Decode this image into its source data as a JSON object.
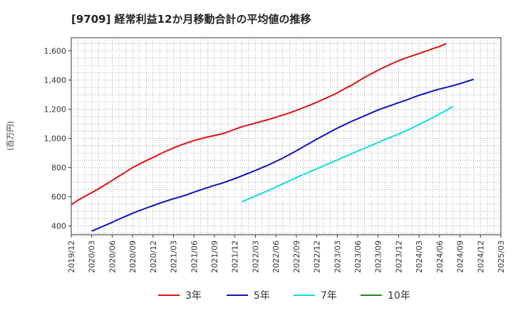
{
  "chart_data": {
    "type": "line",
    "title": "[9709]  経常利益12か月移動合計の平均値の推移",
    "ylabel": "(百万円)",
    "xlabel": "",
    "ylim": [
      340,
      1690
    ],
    "yticks": [
      400,
      600,
      800,
      1000,
      1200,
      1400,
      1600
    ],
    "ytick_labels": [
      "400",
      "600",
      "800",
      "1,000",
      "1,200",
      "1,400",
      "1,600"
    ],
    "xticks": [
      "2019/12",
      "2020/03",
      "2020/06",
      "2020/09",
      "2020/12",
      "2021/03",
      "2021/06",
      "2021/09",
      "2021/12",
      "2022/03",
      "2022/06",
      "2022/09",
      "2022/12",
      "2023/03",
      "2023/06",
      "2023/09",
      "2023/12",
      "2024/03",
      "2024/06",
      "2024/09",
      "2024/12",
      "2025/03"
    ],
    "grid": true,
    "legend_position": "bottom",
    "series": [
      {
        "name": "3年",
        "color": "#dd1111",
        "start": "2019/12",
        "values": [
          545,
          578,
          603,
          628,
          655,
          683,
          712,
          742,
          770,
          800,
          825,
          848,
          870,
          893,
          915,
          935,
          953,
          970,
          985,
          998,
          1010,
          1020,
          1030,
          1045,
          1063,
          1080,
          1092,
          1105,
          1118,
          1130,
          1145,
          1160,
          1175,
          1192,
          1210,
          1228,
          1248,
          1268,
          1290,
          1312,
          1338,
          1362,
          1390,
          1418,
          1443,
          1468,
          1490,
          1512,
          1532,
          1550,
          1565,
          1582,
          1598,
          1615,
          1630,
          1650
        ]
      },
      {
        "name": "5年",
        "color": "#1111bb",
        "start": "2020/03",
        "values": [
          365,
          385,
          405,
          425,
          447,
          467,
          487,
          505,
          523,
          540,
          557,
          572,
          587,
          600,
          615,
          632,
          648,
          663,
          678,
          692,
          708,
          725,
          743,
          762,
          780,
          800,
          820,
          842,
          865,
          890,
          915,
          942,
          968,
          995,
          1020,
          1045,
          1070,
          1092,
          1115,
          1135,
          1155,
          1175,
          1195,
          1212,
          1228,
          1245,
          1260,
          1278,
          1295,
          1310,
          1325,
          1338,
          1350,
          1362,
          1375,
          1390,
          1405
        ]
      },
      {
        "name": "7年",
        "color": "#11dddd",
        "start": "2022/01",
        "values": [
          565,
          585,
          605,
          625,
          645,
          667,
          688,
          710,
          732,
          752,
          772,
          792,
          812,
          832,
          852,
          873,
          893,
          913,
          932,
          952,
          972,
          992,
          1012,
          1030,
          1050,
          1072,
          1095,
          1118,
          1142,
          1167,
          1193,
          1220
        ]
      },
      {
        "name": "10年",
        "color": "#228822",
        "start": "2019/12",
        "values": []
      }
    ]
  }
}
